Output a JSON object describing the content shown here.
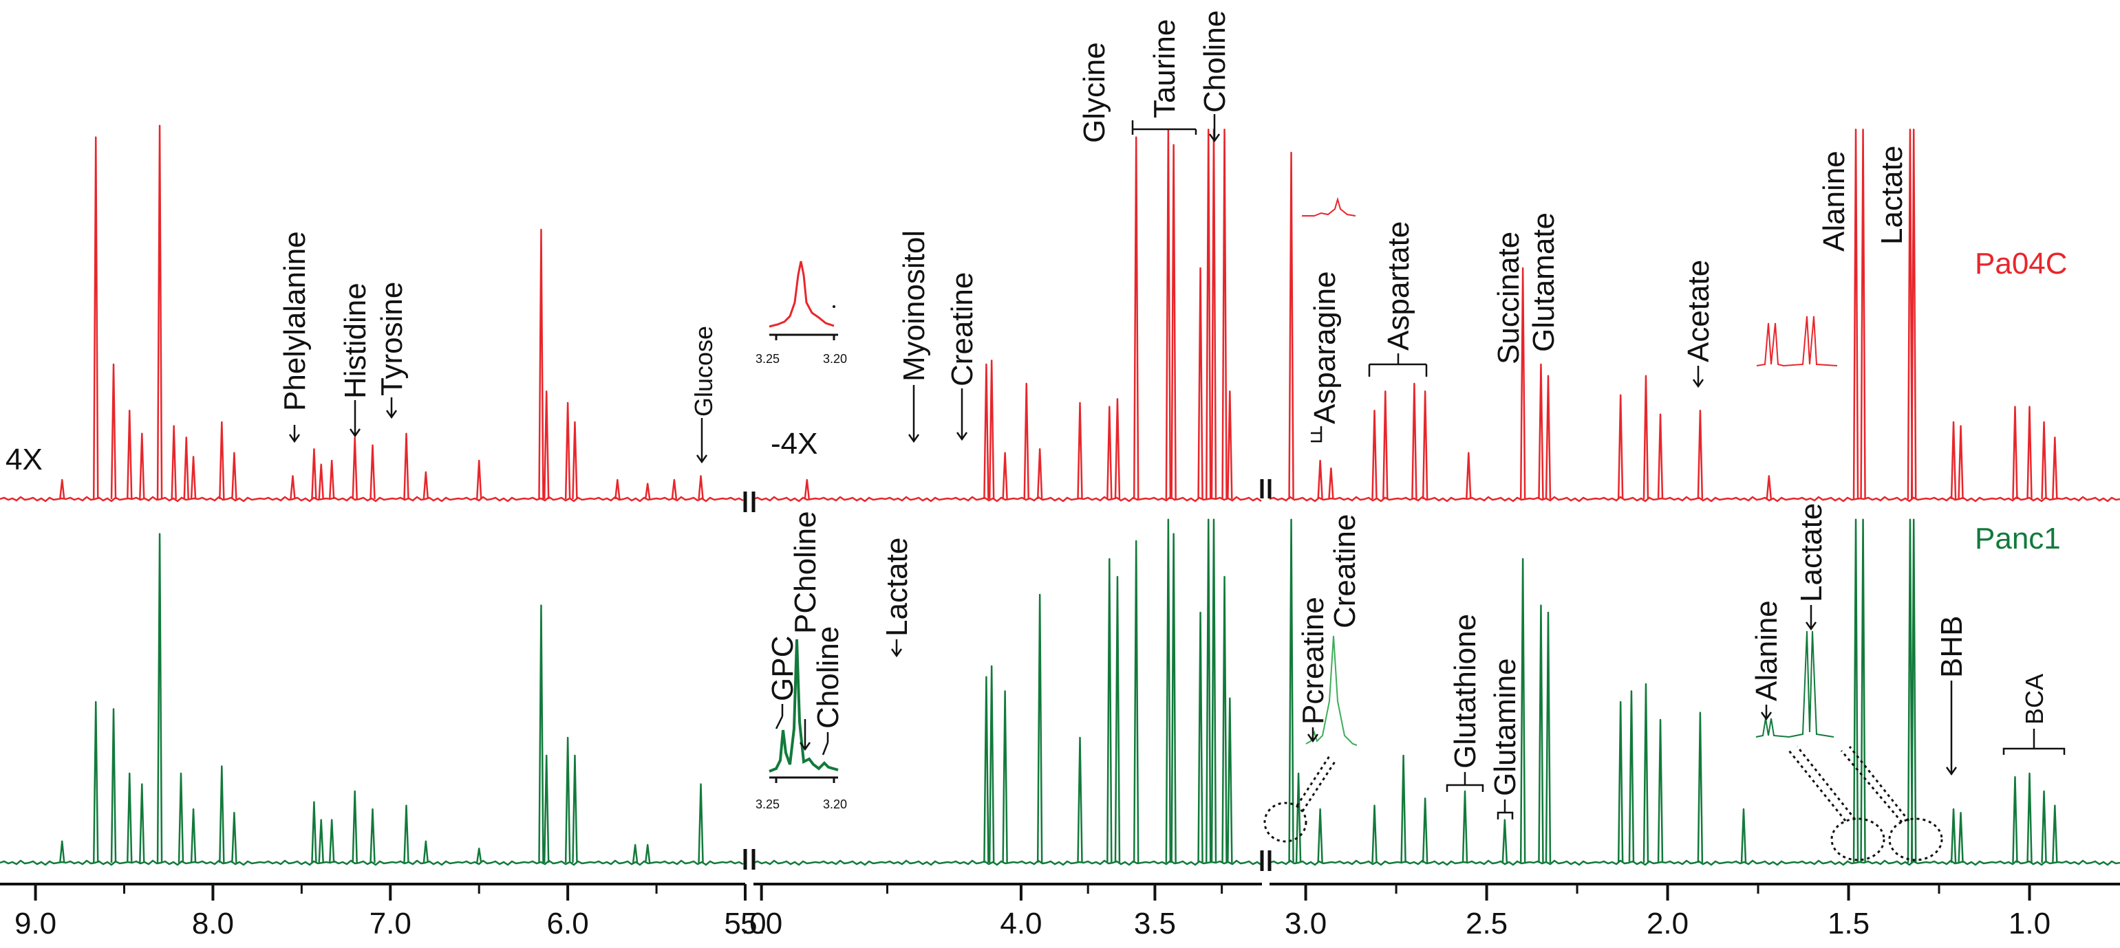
{
  "colors": {
    "red": "#e8262b",
    "green": "#127a3b",
    "light_green": "#3cae5a",
    "axis": "#111111"
  },
  "chart_data": {
    "type": "line",
    "title": "",
    "xlabel": "",
    "ylabel": "",
    "axis_segments": [
      {
        "from": 9.2,
        "to": 5.0,
        "ticks": [
          "9.0",
          "8.0",
          "7.0",
          "6.0",
          "5.0"
        ],
        "tick_values": [
          9.0,
          8.0,
          7.0,
          6.0,
          5.0
        ],
        "minor": [
          8.5,
          7.5,
          6.5,
          5.5
        ]
      },
      {
        "from": 5.0,
        "to": 3.1,
        "ticks": [
          "5.0",
          "4.0",
          "3.5"
        ],
        "tick_values": [
          4.97,
          4.0,
          3.5
        ],
        "minor": [
          4.5,
          3.75,
          3.25
        ]
      },
      {
        "from": 3.1,
        "to": 0.75,
        "ticks": [
          "3.0",
          "2.5",
          "2.0",
          "1.5",
          "1.0"
        ],
        "tick_values": [
          3.0,
          2.5,
          2.0,
          1.5,
          1.0
        ],
        "minor": [
          2.75,
          2.25,
          1.75,
          1.25
        ]
      }
    ],
    "scale_labels": {
      "left": "4X",
      "middle": "-4X"
    },
    "series": [
      {
        "name": "Pa04C",
        "color": "#e8262b",
        "peaks": [
          {
            "ppm": 8.85,
            "h": 0.05
          },
          {
            "ppm": 8.66,
            "h": 0.94
          },
          {
            "ppm": 8.56,
            "h": 0.35
          },
          {
            "ppm": 8.47,
            "h": 0.23
          },
          {
            "ppm": 8.4,
            "h": 0.17
          },
          {
            "ppm": 8.3,
            "h": 1.05
          },
          {
            "ppm": 8.22,
            "h": 0.19
          },
          {
            "ppm": 8.15,
            "h": 0.16
          },
          {
            "ppm": 8.11,
            "h": 0.11
          },
          {
            "ppm": 7.95,
            "h": 0.2
          },
          {
            "ppm": 7.88,
            "h": 0.12
          },
          {
            "ppm": 7.55,
            "h": 0.06
          },
          {
            "ppm": 7.43,
            "h": 0.13
          },
          {
            "ppm": 7.39,
            "h": 0.09
          },
          {
            "ppm": 7.33,
            "h": 0.1
          },
          {
            "ppm": 7.2,
            "h": 0.16
          },
          {
            "ppm": 7.1,
            "h": 0.14
          },
          {
            "ppm": 6.91,
            "h": 0.17
          },
          {
            "ppm": 6.8,
            "h": 0.07
          },
          {
            "ppm": 6.5,
            "h": 0.1
          },
          {
            "ppm": 6.15,
            "h": 0.7
          },
          {
            "ppm": 6.12,
            "h": 0.28
          },
          {
            "ppm": 6.0,
            "h": 0.25
          },
          {
            "ppm": 5.96,
            "h": 0.2
          },
          {
            "ppm": 5.72,
            "h": 0.05
          },
          {
            "ppm": 5.55,
            "h": 0.04
          },
          {
            "ppm": 5.4,
            "h": 0.05
          },
          {
            "ppm": 5.25,
            "h": 0.06
          },
          {
            "ppm": 4.8,
            "h": 0.05
          },
          {
            "ppm": 4.13,
            "h": 0.35
          },
          {
            "ppm": 4.11,
            "h": 0.36
          },
          {
            "ppm": 4.06,
            "h": 0.12
          },
          {
            "ppm": 3.98,
            "h": 0.3
          },
          {
            "ppm": 3.93,
            "h": 0.13
          },
          {
            "ppm": 3.78,
            "h": 0.25
          },
          {
            "ppm": 3.67,
            "h": 0.24
          },
          {
            "ppm": 3.64,
            "h": 0.26
          },
          {
            "ppm": 3.57,
            "h": 0.94
          },
          {
            "ppm": 3.45,
            "h": 0.96
          },
          {
            "ppm": 3.43,
            "h": 0.92
          },
          {
            "ppm": 3.33,
            "h": 0.6
          },
          {
            "ppm": 3.3,
            "h": 0.96
          },
          {
            "ppm": 3.28,
            "h": 0.96
          },
          {
            "ppm": 3.24,
            "h": 0.96
          },
          {
            "ppm": 3.22,
            "h": 0.28
          },
          {
            "ppm": 3.04,
            "h": 0.9
          },
          {
            "ppm": 2.96,
            "h": 0.1
          },
          {
            "ppm": 2.93,
            "h": 0.08
          },
          {
            "ppm": 2.81,
            "h": 0.23
          },
          {
            "ppm": 2.78,
            "h": 0.28
          },
          {
            "ppm": 2.7,
            "h": 0.3
          },
          {
            "ppm": 2.67,
            "h": 0.28
          },
          {
            "ppm": 2.55,
            "h": 0.12
          },
          {
            "ppm": 2.4,
            "h": 0.6
          },
          {
            "ppm": 2.35,
            "h": 0.35
          },
          {
            "ppm": 2.33,
            "h": 0.32
          },
          {
            "ppm": 2.13,
            "h": 0.27
          },
          {
            "ppm": 2.06,
            "h": 0.32
          },
          {
            "ppm": 2.02,
            "h": 0.22
          },
          {
            "ppm": 1.91,
            "h": 0.23
          },
          {
            "ppm": 1.72,
            "h": 0.06
          },
          {
            "ppm": 1.48,
            "h": 0.96
          },
          {
            "ppm": 1.46,
            "h": 0.96
          },
          {
            "ppm": 1.33,
            "h": 0.96
          },
          {
            "ppm": 1.32,
            "h": 0.96
          },
          {
            "ppm": 1.21,
            "h": 0.2
          },
          {
            "ppm": 1.19,
            "h": 0.19
          },
          {
            "ppm": 1.04,
            "h": 0.24
          },
          {
            "ppm": 1.0,
            "h": 0.24
          },
          {
            "ppm": 0.96,
            "h": 0.2
          },
          {
            "ppm": 0.93,
            "h": 0.16
          }
        ]
      },
      {
        "name": "Panc1",
        "color": "#127a3b",
        "peaks": [
          {
            "ppm": 8.85,
            "h": 0.06
          },
          {
            "ppm": 8.66,
            "h": 0.45
          },
          {
            "ppm": 8.56,
            "h": 0.43
          },
          {
            "ppm": 8.47,
            "h": 0.25
          },
          {
            "ppm": 8.4,
            "h": 0.22
          },
          {
            "ppm": 8.3,
            "h": 0.92
          },
          {
            "ppm": 8.18,
            "h": 0.25
          },
          {
            "ppm": 8.11,
            "h": 0.15
          },
          {
            "ppm": 7.95,
            "h": 0.27
          },
          {
            "ppm": 7.88,
            "h": 0.14
          },
          {
            "ppm": 7.43,
            "h": 0.17
          },
          {
            "ppm": 7.39,
            "h": 0.12
          },
          {
            "ppm": 7.33,
            "h": 0.12
          },
          {
            "ppm": 7.2,
            "h": 0.2
          },
          {
            "ppm": 7.1,
            "h": 0.15
          },
          {
            "ppm": 6.91,
            "h": 0.16
          },
          {
            "ppm": 6.8,
            "h": 0.06
          },
          {
            "ppm": 6.5,
            "h": 0.04
          },
          {
            "ppm": 6.15,
            "h": 0.72
          },
          {
            "ppm": 6.12,
            "h": 0.3
          },
          {
            "ppm": 6.0,
            "h": 0.35
          },
          {
            "ppm": 5.96,
            "h": 0.3
          },
          {
            "ppm": 5.62,
            "h": 0.05
          },
          {
            "ppm": 5.55,
            "h": 0.05
          },
          {
            "ppm": 5.25,
            "h": 0.22
          },
          {
            "ppm": 4.13,
            "h": 0.52
          },
          {
            "ppm": 4.11,
            "h": 0.55
          },
          {
            "ppm": 4.06,
            "h": 0.48
          },
          {
            "ppm": 3.93,
            "h": 0.75
          },
          {
            "ppm": 3.78,
            "h": 0.35
          },
          {
            "ppm": 3.67,
            "h": 0.85
          },
          {
            "ppm": 3.64,
            "h": 0.8
          },
          {
            "ppm": 3.57,
            "h": 0.9
          },
          {
            "ppm": 3.45,
            "h": 0.96
          },
          {
            "ppm": 3.43,
            "h": 0.92
          },
          {
            "ppm": 3.33,
            "h": 0.7
          },
          {
            "ppm": 3.3,
            "h": 0.96
          },
          {
            "ppm": 3.28,
            "h": 0.96
          },
          {
            "ppm": 3.24,
            "h": 0.8
          },
          {
            "ppm": 3.22,
            "h": 0.46
          },
          {
            "ppm": 3.04,
            "h": 0.96
          },
          {
            "ppm": 3.02,
            "h": 0.25
          },
          {
            "ppm": 2.96,
            "h": 0.15
          },
          {
            "ppm": 2.81,
            "h": 0.16
          },
          {
            "ppm": 2.73,
            "h": 0.3
          },
          {
            "ppm": 2.67,
            "h": 0.18
          },
          {
            "ppm": 2.56,
            "h": 0.2
          },
          {
            "ppm": 2.45,
            "h": 0.12
          },
          {
            "ppm": 2.4,
            "h": 0.85
          },
          {
            "ppm": 2.35,
            "h": 0.72
          },
          {
            "ppm": 2.33,
            "h": 0.7
          },
          {
            "ppm": 2.13,
            "h": 0.45
          },
          {
            "ppm": 2.1,
            "h": 0.48
          },
          {
            "ppm": 2.06,
            "h": 0.5
          },
          {
            "ppm": 2.02,
            "h": 0.4
          },
          {
            "ppm": 1.91,
            "h": 0.42
          },
          {
            "ppm": 1.79,
            "h": 0.15
          },
          {
            "ppm": 1.48,
            "h": 0.96
          },
          {
            "ppm": 1.46,
            "h": 0.96
          },
          {
            "ppm": 1.33,
            "h": 0.96
          },
          {
            "ppm": 1.32,
            "h": 0.96
          },
          {
            "ppm": 1.21,
            "h": 0.15
          },
          {
            "ppm": 1.19,
            "h": 0.14
          },
          {
            "ppm": 1.04,
            "h": 0.24
          },
          {
            "ppm": 1.0,
            "h": 0.25
          },
          {
            "ppm": 0.96,
            "h": 0.2
          },
          {
            "ppm": 0.93,
            "h": 0.16
          }
        ]
      }
    ],
    "annotations_top": [
      "Phelylalanine",
      "Histidine",
      "Tyrosine",
      "Glucose",
      "Myoinositol",
      "Creatine",
      "Glycine",
      "Taurine",
      "Choline",
      "Asparagine",
      "Aspartate",
      "Succinate",
      "Glutamate",
      "Acetate",
      "Alanine",
      "Lactate"
    ],
    "annotations_bottom": [
      "GPC",
      "PCholine",
      "Choline",
      "Lactate",
      "Pcreatine",
      "Creatine",
      "Glutathione",
      "Glutamine",
      "Alanine",
      "Lactate",
      "BHB",
      "BCA"
    ],
    "inset_ticks": [
      "3.25",
      "3.20"
    ]
  }
}
